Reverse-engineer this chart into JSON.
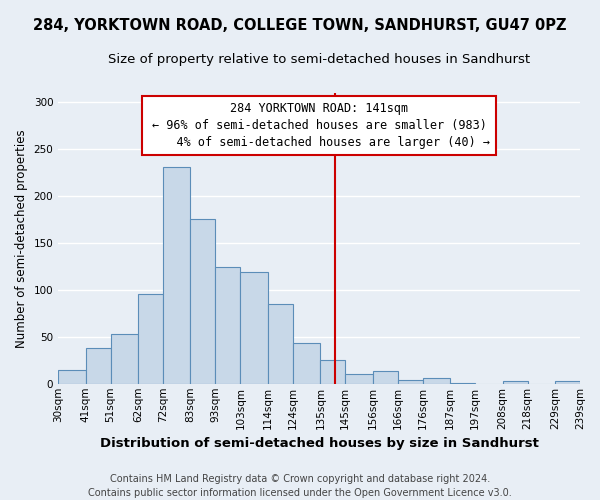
{
  "title": "284, YORKTOWN ROAD, COLLEGE TOWN, SANDHURST, GU47 0PZ",
  "subtitle": "Size of property relative to semi-detached houses in Sandhurst",
  "xlabel": "Distribution of semi-detached houses by size in Sandhurst",
  "ylabel": "Number of semi-detached properties",
  "bar_color": "#c8d8e8",
  "bar_edge_color": "#5b8db8",
  "background_color": "#e8eef5",
  "grid_color": "#ffffff",
  "bin_labels": [
    "30sqm",
    "41sqm",
    "51sqm",
    "62sqm",
    "72sqm",
    "83sqm",
    "93sqm",
    "103sqm",
    "114sqm",
    "124sqm",
    "135sqm",
    "145sqm",
    "156sqm",
    "166sqm",
    "176sqm",
    "187sqm",
    "197sqm",
    "208sqm",
    "218sqm",
    "229sqm",
    "239sqm"
  ],
  "bar_values": [
    15,
    38,
    53,
    96,
    231,
    176,
    125,
    119,
    85,
    43,
    25,
    10,
    14,
    4,
    6,
    1,
    0,
    3,
    0,
    3
  ],
  "bin_edges": [
    30,
    41,
    51,
    62,
    72,
    83,
    93,
    103,
    114,
    124,
    135,
    145,
    156,
    166,
    176,
    187,
    197,
    208,
    218,
    229,
    239
  ],
  "ylim": [
    0,
    310
  ],
  "yticks": [
    0,
    50,
    100,
    150,
    200,
    250,
    300
  ],
  "vline_x": 141,
  "vline_color": "#cc0000",
  "annotation_line1": "284 YORKTOWN ROAD: 141sqm",
  "annotation_line2": "← 96% of semi-detached houses are smaller (983)",
  "annotation_line3": "    4% of semi-detached houses are larger (40) →",
  "annotation_box_color": "#cc0000",
  "footer_line1": "Contains HM Land Registry data © Crown copyright and database right 2024.",
  "footer_line2": "Contains public sector information licensed under the Open Government Licence v3.0.",
  "title_fontsize": 10.5,
  "subtitle_fontsize": 9.5,
  "xlabel_fontsize": 9.5,
  "ylabel_fontsize": 8.5,
  "tick_fontsize": 7.5,
  "annotation_fontsize": 8.5,
  "footer_fontsize": 7.0
}
